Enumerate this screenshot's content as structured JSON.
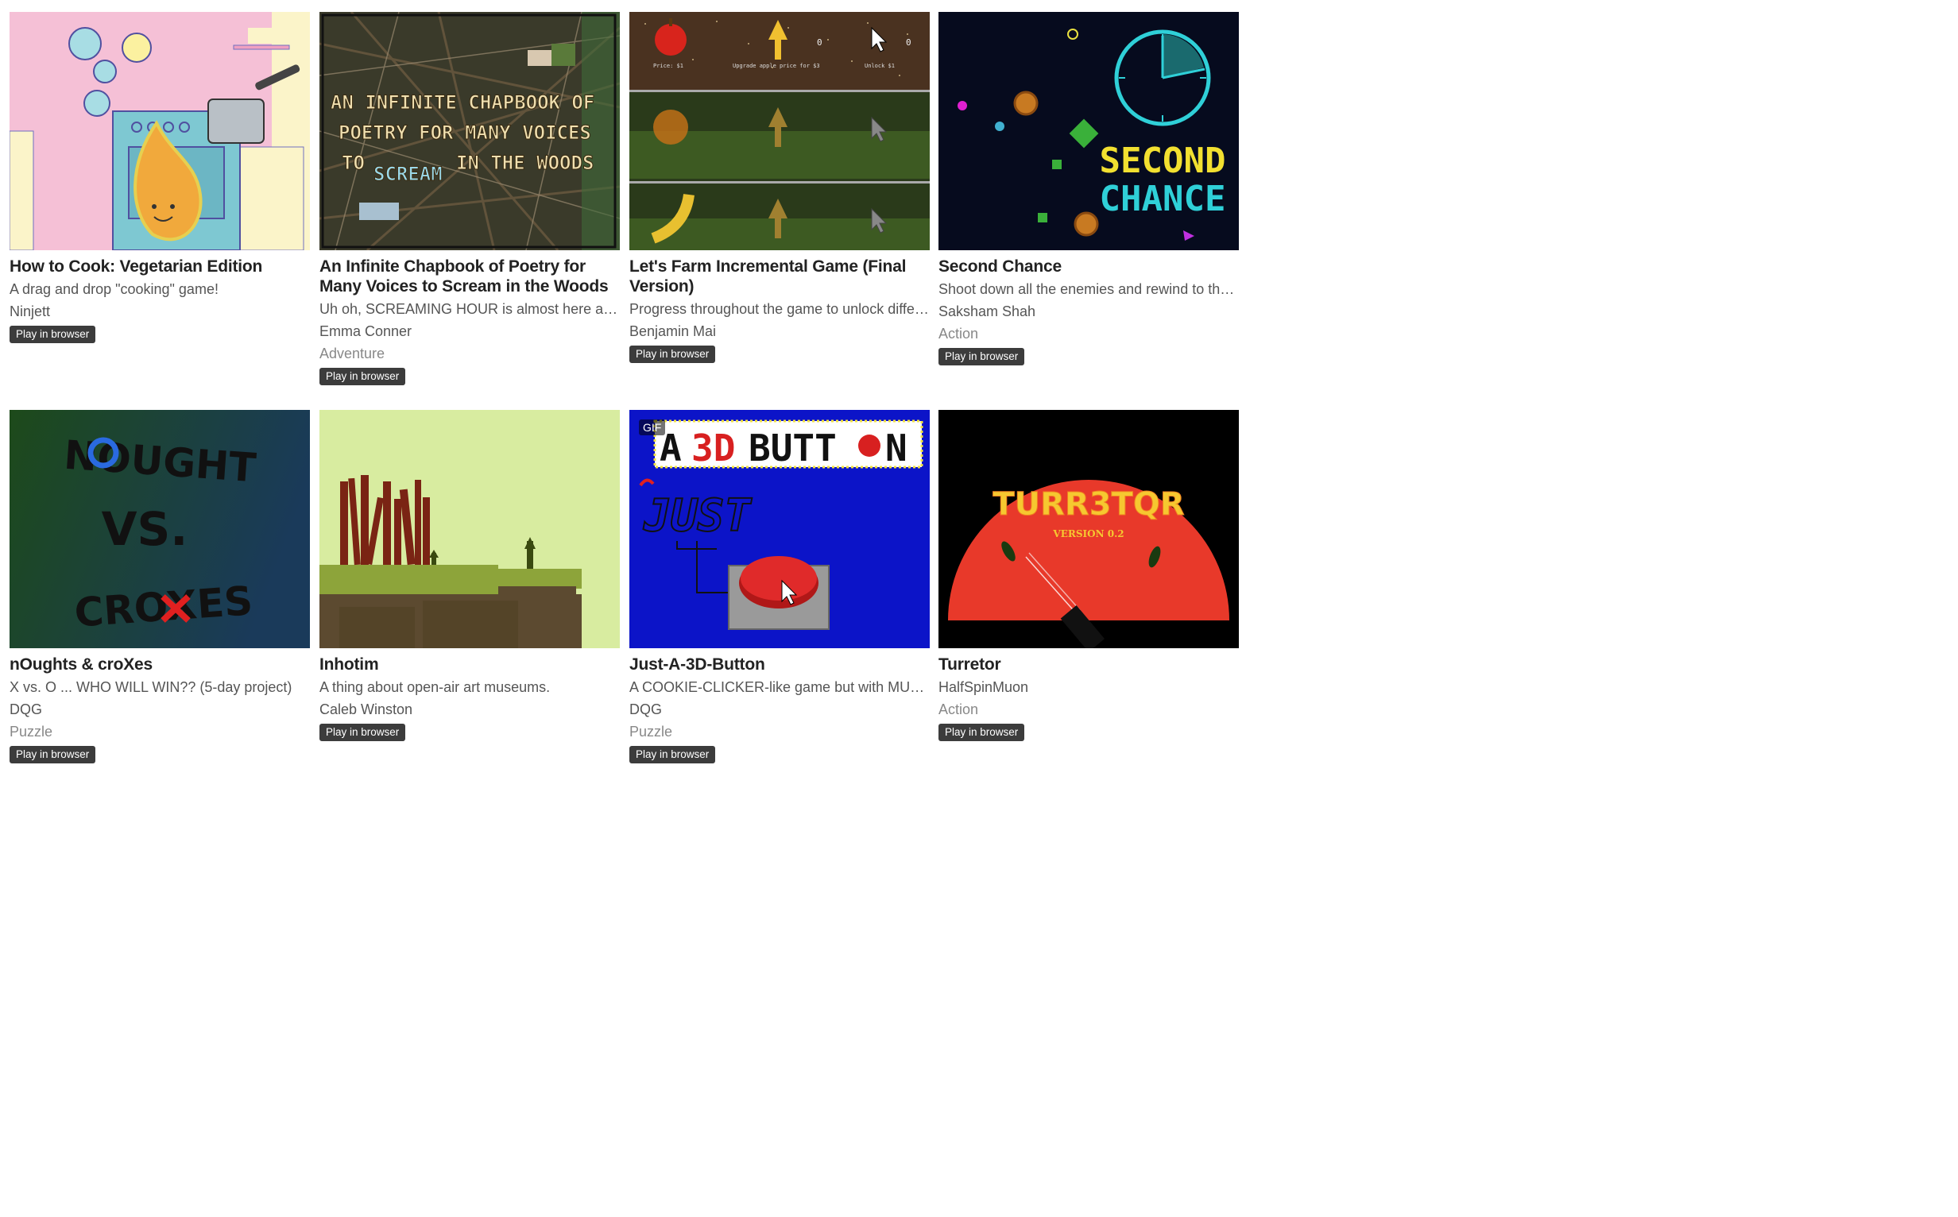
{
  "games": [
    {
      "title": "How to Cook: Vegetarian Edition",
      "description": "A drag and drop \"cooking\" game!",
      "author": "Ninjett",
      "genre": "",
      "badge": "Play in browser"
    },
    {
      "title": "An Infinite Chapbook of Poetry for Many Voices to Scream in the Woods",
      "description": "Uh oh, SCREAMING HOUR is almost here and ...",
      "author": "Emma Conner",
      "genre": "Adventure",
      "badge": "Play in browser",
      "art": {
        "line1": "AN INFINITE CHAPBOOK OF",
        "line2": "POETRY FOR MANY VOICES",
        "line3a": "TO",
        "line3b": "SCREAM",
        "line3c": "IN THE WOODS"
      }
    },
    {
      "title": "Let's Farm Incremental Game (Final Version)",
      "description": "Progress throughout the game to unlock differ...",
      "author": "Benjamin Mai",
      "genre": "",
      "badge": "Play in browser",
      "art": {
        "price": "Price: $1",
        "upgrade": "Upgrade apple price for $3",
        "unlock": "Unlock $1",
        "count1": "0",
        "count2": "0"
      }
    },
    {
      "title": "Second Chance",
      "description": "Shoot down all the enemies and rewind to the ...",
      "author": "Saksham Shah",
      "genre": "Action",
      "badge": "Play in browser",
      "art": {
        "line1": "SECOND",
        "line2": "CHANCE"
      }
    },
    {
      "title": "nOughts & croXes",
      "description": "X vs. O ... WHO WILL WIN?? (5-day project)",
      "author": "DQG",
      "genre": "Puzzle",
      "badge": "Play in browser",
      "art": {
        "line1": "NOUGHT",
        "line2": "VS.",
        "line3": "CROXES"
      }
    },
    {
      "title": "Inhotim",
      "description": "A thing about open-air art museums.",
      "author": "Caleb Winston",
      "genre": "",
      "badge": "Play in browser"
    },
    {
      "title": "Just-A-3D-Button",
      "description": "A COOKIE-CLICKER-like game but with MUC...",
      "author": "DQG",
      "genre": "Puzzle",
      "badge": "Play in browser",
      "art": {
        "gif": "GIF",
        "banner_a": "A",
        "banner_3d": "3D",
        "banner_button": "BUTT",
        "banner_n": "N",
        "just": "JUST"
      }
    },
    {
      "title": "Turretor",
      "description": "HalfSpinMuon",
      "author": "",
      "genre": "Action",
      "badge": "Play in browser",
      "art": {
        "logo": "TURR3TQR",
        "version": "VERSION 0.2"
      }
    }
  ]
}
